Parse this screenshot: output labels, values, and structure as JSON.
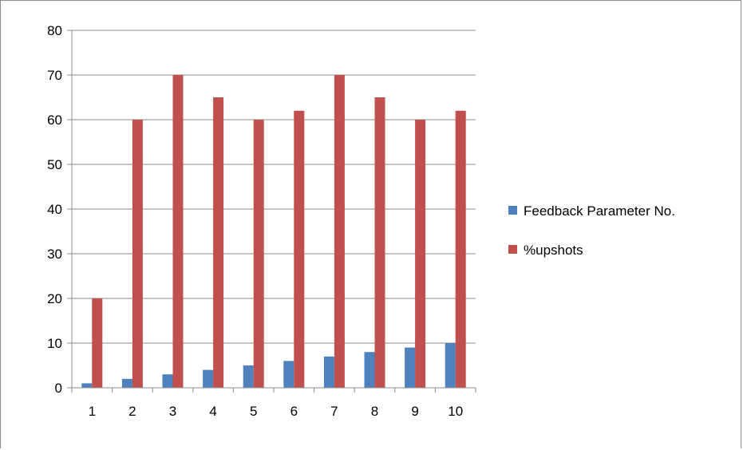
{
  "chart_data": {
    "type": "bar",
    "categories": [
      "1",
      "2",
      "3",
      "4",
      "5",
      "6",
      "7",
      "8",
      "9",
      "10"
    ],
    "series": [
      {
        "name": "Feedback Parameter No.",
        "color": "#4f81bd",
        "values": [
          1,
          2,
          3,
          4,
          5,
          6,
          7,
          8,
          9,
          10
        ]
      },
      {
        "name": "%upshots",
        "color": "#c0504d",
        "values": [
          20,
          60,
          70,
          65,
          60,
          62,
          70,
          65,
          60,
          62
        ]
      }
    ],
    "yticks": [
      "0",
      "10",
      "20",
      "30",
      "40",
      "50",
      "60",
      "70",
      "80"
    ],
    "ylim": [
      0,
      80
    ],
    "grid": true,
    "legend_position": "right",
    "title": "",
    "xlabel": "",
    "ylabel": ""
  }
}
